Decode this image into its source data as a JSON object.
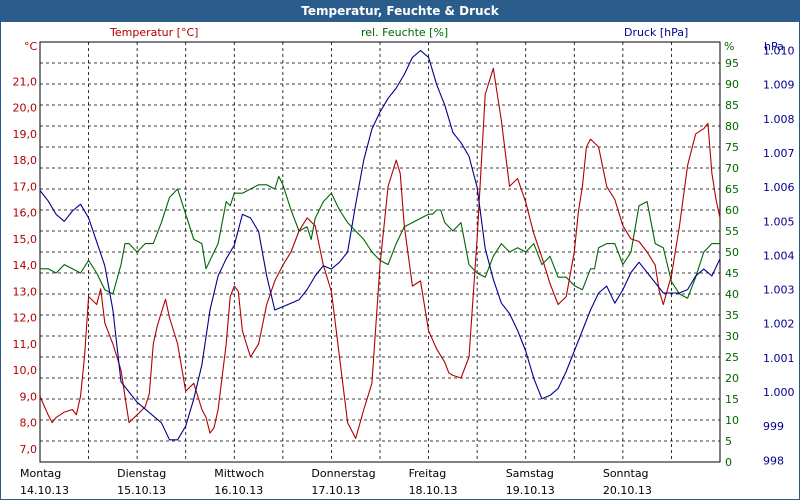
{
  "window": {
    "title": "Temperatur, Feuchte & Druck"
  },
  "colors": {
    "temperature": "#b00000",
    "humidity": "#006600",
    "pressure": "#00008b",
    "titlebar": "#2b5d8c"
  },
  "chart_data": {
    "type": "line",
    "title": "Temperatur, Feuchte & Druck",
    "x": {
      "unit": "hours since Montag 14.10.13 00:00",
      "range": [
        0,
        168
      ],
      "days": [
        {
          "weekday": "Montag",
          "date": "14.10.13"
        },
        {
          "weekday": "Dienstag",
          "date": "15.10.13"
        },
        {
          "weekday": "Mittwoch",
          "date": "16.10.13"
        },
        {
          "weekday": "Donnerstag",
          "date": "17.10.13"
        },
        {
          "weekday": "Freitag",
          "date": "18.10.13"
        },
        {
          "weekday": "Samstag",
          "date": "19.10.13"
        },
        {
          "weekday": "Sonntag",
          "date": "20.10.13"
        }
      ]
    },
    "axes": {
      "temperature": {
        "label": "Temperatur [°C]",
        "unit": "°C",
        "range": [
          6.5,
          22.5
        ],
        "ticks": [
          "7,0",
          "8,0",
          "9,0",
          "10,0",
          "11,0",
          "12,0",
          "13,0",
          "14,0",
          "15,0",
          "16,0",
          "17,0",
          "18,0",
          "19,0",
          "20,0",
          "21,0"
        ]
      },
      "humidity": {
        "label": "rel. Feuchte [%]",
        "unit": "%",
        "range": [
          0,
          100
        ],
        "ticks": [
          "0",
          "5",
          "10",
          "15",
          "20",
          "25",
          "30",
          "35",
          "40",
          "45",
          "50",
          "55",
          "60",
          "65",
          "70",
          "75",
          "80",
          "85",
          "90",
          "95"
        ]
      },
      "pressure": {
        "label": "Druck [hPa]",
        "unit": "hPa",
        "range": [
          997.95,
          1010.25
        ],
        "ticks": [
          "998",
          "999",
          "1.000",
          "1.001",
          "1.002",
          "1.003",
          "1.004",
          "1.005",
          "1.006",
          "1.007",
          "1.008",
          "1.009",
          "1.010"
        ]
      }
    },
    "grid": true,
    "series": [
      {
        "name": "Temperatur",
        "axis": "temperature",
        "x": [
          0,
          2,
          3,
          4,
          5,
          6,
          8,
          9,
          10,
          11,
          12,
          14,
          15,
          16,
          18,
          20,
          22,
          24,
          26,
          27,
          28,
          29,
          30,
          31,
          32,
          34,
          36,
          38,
          40,
          41,
          42,
          43,
          44,
          46,
          47,
          48,
          49,
          50,
          51,
          52,
          54,
          56,
          58,
          60,
          62,
          64,
          66,
          68,
          70,
          72,
          74,
          76,
          78,
          80,
          82,
          84,
          86,
          88,
          89,
          90,
          92,
          94,
          96,
          98,
          100,
          101,
          102,
          104,
          106,
          108,
          110,
          112,
          114,
          116,
          118,
          120,
          122,
          124,
          126,
          128,
          130,
          132,
          133,
          134,
          135,
          136,
          138,
          140,
          142,
          144,
          146,
          148,
          150,
          152,
          153,
          154,
          156,
          158,
          160,
          162,
          164,
          165,
          166,
          167,
          168
        ],
        "values": [
          9.0,
          8.3,
          8.0,
          8.2,
          8.3,
          8.4,
          8.5,
          8.3,
          9.0,
          10.5,
          12.8,
          12.5,
          13.1,
          11.8,
          11.0,
          10.0,
          8.0,
          8.3,
          8.6,
          9.1,
          11.0,
          11.7,
          12.2,
          12.7,
          12.0,
          11.0,
          9.2,
          9.5,
          8.5,
          8.2,
          7.6,
          7.8,
          8.5,
          11.0,
          12.8,
          13.2,
          13.0,
          11.5,
          11.0,
          10.5,
          11.0,
          12.5,
          13.4,
          14.0,
          14.5,
          15.3,
          15.8,
          15.5,
          14.0,
          13.0,
          10.5,
          8.0,
          7.4,
          8.5,
          9.5,
          14.0,
          17.0,
          18.0,
          17.5,
          15.5,
          13.2,
          13.4,
          11.5,
          10.8,
          10.3,
          9.9,
          9.8,
          9.7,
          10.5,
          15.0,
          20.5,
          21.5,
          19.5,
          17.0,
          17.3,
          16.4,
          15.2,
          14.3,
          13.3,
          12.5,
          12.8,
          14.5,
          16.0,
          17.0,
          18.5,
          18.8,
          18.5,
          17.0,
          16.5,
          15.5,
          15.0,
          14.9,
          14.5,
          14.0,
          13.0,
          12.5,
          13.6,
          15.5,
          17.8,
          19.0,
          19.2,
          19.4,
          17.5,
          16.5,
          15.8
        ]
      },
      {
        "name": "rel. Feuchte",
        "axis": "humidity",
        "x": [
          0,
          2,
          4,
          6,
          8,
          10,
          12,
          14,
          16,
          18,
          20,
          21,
          22,
          24,
          26,
          28,
          30,
          32,
          34,
          36,
          38,
          40,
          41,
          42,
          44,
          46,
          47,
          48,
          50,
          52,
          54,
          56,
          58,
          59,
          60,
          62,
          64,
          66,
          67,
          68,
          70,
          72,
          74,
          76,
          78,
          80,
          82,
          84,
          86,
          88,
          90,
          92,
          94,
          96,
          97,
          98,
          99,
          100,
          102,
          104,
          106,
          108,
          110,
          112,
          114,
          116,
          118,
          120,
          122,
          124,
          126,
          128,
          130,
          132,
          134,
          136,
          137,
          138,
          140,
          142,
          144,
          146,
          148,
          150,
          152,
          154,
          156,
          158,
          160,
          162,
          164,
          166,
          168
        ],
        "values": [
          46,
          46,
          45,
          47,
          46,
          45,
          48,
          45,
          41,
          40,
          47,
          52,
          52,
          50,
          52,
          52,
          57,
          63,
          65,
          59,
          53,
          52,
          46,
          48,
          52,
          62,
          61,
          64,
          64,
          65,
          66,
          66,
          65,
          68,
          66,
          60,
          55,
          56,
          53,
          58,
          62,
          64,
          60,
          57,
          55,
          53,
          50,
          48,
          47,
          52,
          56,
          57,
          58,
          59,
          59,
          60,
          60,
          57,
          55,
          57,
          47,
          45,
          44,
          49,
          52,
          50,
          51,
          50,
          52,
          47,
          49,
          44,
          44,
          42,
          41,
          46,
          46,
          51,
          52,
          52,
          47,
          50,
          61,
          62,
          52,
          51,
          43,
          40,
          39,
          44,
          50,
          52,
          52
        ]
      },
      {
        "name": "Druck",
        "axis": "pressure",
        "x": [
          0,
          2,
          4,
          6,
          8,
          10,
          12,
          14,
          16,
          18,
          20,
          22,
          24,
          26,
          28,
          30,
          32,
          34,
          36,
          38,
          40,
          42,
          44,
          46,
          48,
          50,
          52,
          54,
          56,
          58,
          60,
          62,
          64,
          66,
          68,
          70,
          72,
          74,
          76,
          78,
          80,
          82,
          84,
          86,
          88,
          90,
          92,
          94,
          96,
          98,
          100,
          102,
          104,
          106,
          108,
          110,
          112,
          114,
          116,
          118,
          120,
          122,
          124,
          126,
          128,
          130,
          132,
          134,
          136,
          138,
          140,
          142,
          144,
          146,
          148,
          150,
          152,
          154,
          156,
          158,
          160,
          162,
          164,
          166,
          168
        ],
        "values": [
          1005.9,
          1005.6,
          1005.2,
          1005.0,
          1005.3,
          1005.5,
          1005.1,
          1004.4,
          1003.7,
          1002.4,
          1000.3,
          1000.0,
          999.7,
          999.5,
          999.3,
          999.1,
          998.6,
          998.6,
          999.0,
          999.8,
          1000.8,
          1002.4,
          1003.4,
          1003.9,
          1004.3,
          1005.2,
          1005.1,
          1004.7,
          1003.4,
          1002.4,
          1002.5,
          1002.6,
          1002.7,
          1003.0,
          1003.4,
          1003.7,
          1003.6,
          1003.8,
          1004.1,
          1005.5,
          1006.8,
          1007.7,
          1008.2,
          1008.6,
          1008.9,
          1009.3,
          1009.8,
          1010.0,
          1009.8,
          1009.0,
          1008.4,
          1007.6,
          1007.3,
          1006.9,
          1006.0,
          1004.2,
          1003.3,
          1002.6,
          1002.3,
          1001.8,
          1001.2,
          1000.4,
          999.8,
          999.9,
          1000.1,
          1000.6,
          1001.2,
          1001.8,
          1002.4,
          1002.9,
          1003.1,
          1002.6,
          1003.0,
          1003.5,
          1003.8,
          1003.5,
          1003.2,
          1002.9,
          1002.9,
          1002.9,
          1003.0,
          1003.4,
          1003.6,
          1003.4,
          1003.9
        ]
      }
    ]
  }
}
